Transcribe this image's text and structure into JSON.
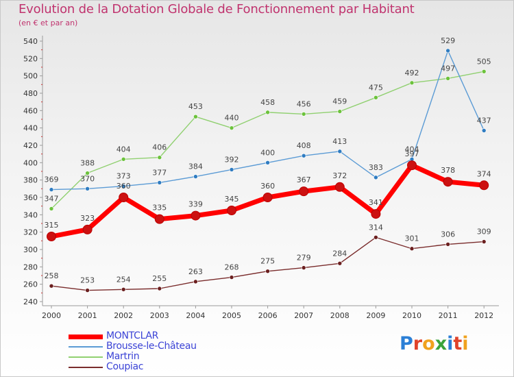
{
  "title": "Evolution de la Dotation Globale de Fonctionnement par Habitant",
  "subtitle": "(en € et par an)",
  "logo": {
    "text": "Proxiti",
    "letters": [
      {
        "ch": "P",
        "color": "#2b7fd6"
      },
      {
        "ch": "r",
        "color": "#e0432b"
      },
      {
        "ch": "o",
        "color": "#f0a21e"
      },
      {
        "ch": "x",
        "color": "#3aa33a"
      },
      {
        "ch": "i",
        "color": "#2b7fd6"
      },
      {
        "ch": "t",
        "color": "#e0432b"
      },
      {
        "ch": "i",
        "color": "#f0a21e"
      }
    ]
  },
  "chart_data": {
    "type": "line",
    "x": [
      "2000",
      "2001",
      "2002",
      "2003",
      "2004",
      "2005",
      "2006",
      "2007",
      "2008",
      "2009",
      "2010",
      "2011",
      "2012"
    ],
    "ylim": [
      240,
      540
    ],
    "yticks": [
      240,
      260,
      280,
      300,
      320,
      340,
      360,
      380,
      400,
      420,
      440,
      460,
      480,
      500,
      520,
      540
    ],
    "grid": false,
    "legend_position": "bottom-left",
    "series": [
      {
        "name": "MONTCLAR",
        "color": "#ff0000",
        "dot_color": "#cc1111",
        "values": [
          315,
          323,
          360,
          335,
          339,
          345,
          360,
          367,
          372,
          341,
          397,
          378,
          374
        ],
        "labels": [
          "315",
          "323",
          "360",
          "335",
          "339",
          "345",
          "360",
          "367",
          "372",
          "341",
          "397",
          "378",
          "374"
        ]
      },
      {
        "name": "Brousse-le-Château",
        "color": "#5b9bd5",
        "dot_color": "#2f7cc1",
        "values": [
          369,
          370,
          373,
          377,
          384,
          392,
          400,
          408,
          413,
          383,
          404,
          529,
          437
        ],
        "labels": [
          "369",
          "370",
          "373",
          "377",
          "384",
          "392",
          "400",
          "408",
          "413",
          "383",
          "404",
          "529",
          "437"
        ]
      },
      {
        "name": "Martrin",
        "color": "#90d070",
        "dot_color": "#6cc23c",
        "values": [
          347,
          388,
          404,
          406,
          453,
          440,
          458,
          456,
          459,
          475,
          492,
          497,
          505
        ],
        "labels": [
          "347",
          "388",
          "404",
          "406",
          "453",
          "440",
          "458",
          "456",
          "459",
          "475",
          "492",
          "497",
          "505"
        ]
      },
      {
        "name": "Coupiac",
        "color": "#7a2c2c",
        "dot_color": "#6b1f1f",
        "values": [
          258,
          253,
          254,
          255,
          263,
          268,
          275,
          279,
          284,
          314,
          301,
          306,
          309
        ],
        "labels": [
          "258",
          "253",
          "254",
          "255",
          "263",
          "268",
          "275",
          "279",
          "284",
          "314",
          "301",
          "306",
          "309"
        ]
      }
    ]
  }
}
